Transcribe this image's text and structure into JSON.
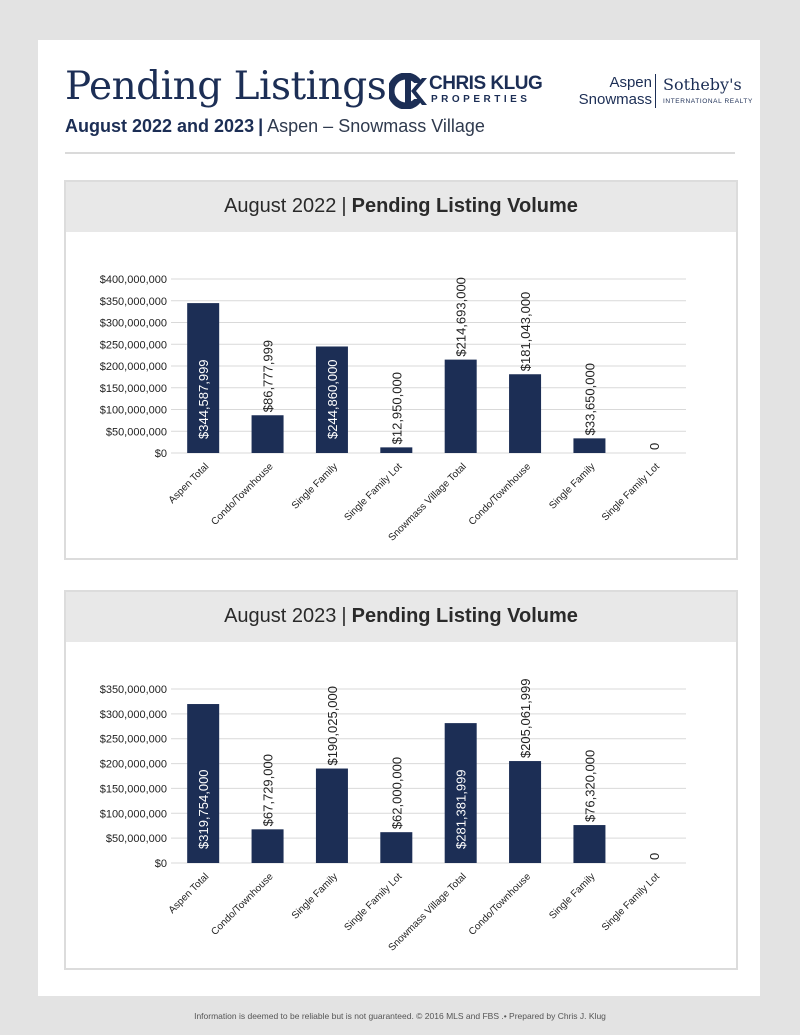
{
  "header": {
    "title": "Pending Listings",
    "subtitle_dates": "August 2022 and 2023",
    "subtitle_separator": "|",
    "subtitle_location": "Aspen – Snowmass Village"
  },
  "logos": {
    "ck_name": "CHRIS KLUG",
    "ck_sub": "PROPERTIES",
    "sb_line1": "Aspen",
    "sb_line2": "Snowmass",
    "sb_name": "Sotheby's",
    "sb_intl": "INTERNATIONAL REALTY"
  },
  "footer": "Information is deemed to be reliable but is not guaranteed. © 2016 MLS and FBS .• Prepared by Chris J. Klug",
  "colors": {
    "bar": "#1c2e55",
    "navy": "#1c2e55",
    "grid": "#d9d9d9"
  },
  "chart_data": [
    {
      "type": "bar",
      "heading_prefix": "August 2022",
      "heading_separator": "|",
      "heading_bold": "Pending Listing Volume",
      "categories": [
        "Aspen Total",
        "Condo/Townhouse",
        "Single Family",
        "Single Family Lot",
        "Snowmass Village Total",
        "Condo/Townhouse",
        "Single Family",
        "Single Family Lot"
      ],
      "values": [
        344587999,
        86777999,
        244860000,
        12950000,
        214693000,
        181043000,
        33650000,
        0
      ],
      "data_labels": [
        "$344,587,999",
        "$86,777,999",
        "$244,860,000",
        "$12,950,000",
        "$214,693,000",
        "$181,043,000",
        "$33,650,000",
        "0"
      ],
      "label_inside": [
        true,
        false,
        true,
        false,
        false,
        false,
        false,
        false
      ],
      "yticks": [
        "$0",
        "$50,000,000",
        "$100,000,000",
        "$150,000,000",
        "$200,000,000",
        "$250,000,000",
        "$300,000,000",
        "$350,000,000",
        "$400,000,000"
      ],
      "ylim": [
        0,
        400000000
      ],
      "grid": true
    },
    {
      "type": "bar",
      "heading_prefix": "August 2023",
      "heading_separator": "|",
      "heading_bold": "Pending Listing Volume",
      "categories": [
        "Aspen Total",
        "Condo/Townhouse",
        "Single Family",
        "Single Family Lot",
        "Snowmass Village Total",
        "Condo/Townhouse",
        "Single Family",
        "Single Family Lot"
      ],
      "values": [
        319754000,
        67729000,
        190025000,
        62000000,
        281381999,
        205061999,
        76320000,
        0
      ],
      "data_labels": [
        "$319,754,000",
        "$67,729,000",
        "$190,025,000",
        "$62,000,000",
        "$281,381,999",
        "$205,061,999",
        "$76,320,000",
        "0"
      ],
      "label_inside": [
        true,
        false,
        false,
        false,
        true,
        false,
        false,
        false
      ],
      "yticks": [
        "$0",
        "$50,000,000",
        "$100,000,000",
        "$150,000,000",
        "$200,000,000",
        "$250,000,000",
        "$300,000,000",
        "$350,000,000"
      ],
      "ylim": [
        0,
        350000000
      ],
      "grid": true
    }
  ]
}
